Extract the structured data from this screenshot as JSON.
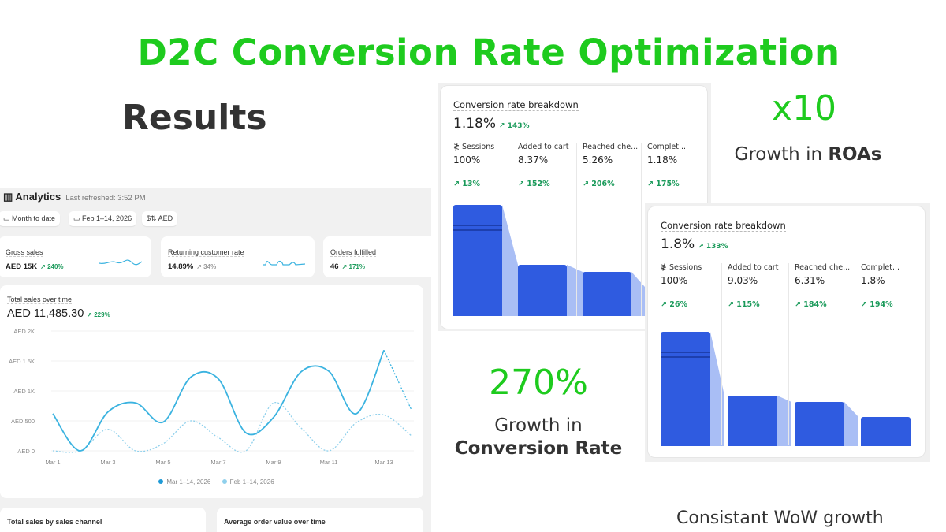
{
  "headline": "D2C Conversion Rate Optimization",
  "results": "Results",
  "stats": {
    "roas_value": "x10",
    "roas_caption_prefix": "Growth in ",
    "roas_caption_bold": "ROAs",
    "cr_value": "270%",
    "cr_caption_line1": "Growth in",
    "cr_caption_bold": "Conversion Rate",
    "footer": "Consistant WoW growth"
  },
  "colors": {
    "accent_green": "#1ecb1e",
    "bar_blue": "#2f5be0",
    "line_blue": "#3bb3e0",
    "up_green": "#1a9a5a"
  },
  "analytics": {
    "title": "Analytics",
    "refreshed": "Last refreshed: 3:52 PM",
    "chips": [
      "Month to date",
      "Feb 1–14, 2026",
      "AED"
    ],
    "kpis": [
      {
        "label": "Gross sales",
        "value": "AED 15K",
        "change": "240%"
      },
      {
        "label": "Returning customer rate",
        "value": "14.89%",
        "change": "34%"
      },
      {
        "label": "Orders fulfilled",
        "value": "46",
        "change": "171%"
      }
    ],
    "bottom_cards": [
      "Total sales by sales channel",
      "Average order value over time"
    ]
  },
  "chart_data": {
    "type": "line",
    "title": "Total sales over time",
    "total": "AED 11,485.30",
    "change": "229%",
    "yticks": [
      "AED 0",
      "AED 500",
      "AED 1K",
      "AED 1.5K",
      "AED 2K"
    ],
    "ylim": [
      0,
      2000
    ],
    "xticks": [
      "Mar 1",
      "Mar 3",
      "Mar 5",
      "Mar 7",
      "Mar 9",
      "Mar 11",
      "Mar 13"
    ],
    "x": [
      1,
      2,
      3,
      4,
      5,
      6,
      7,
      8,
      9,
      10,
      11,
      12,
      13,
      14
    ],
    "series": [
      {
        "name": "Mar 1–14, 2026",
        "values": [
          620,
          0,
          650,
          800,
          480,
          1230,
          1200,
          300,
          560,
          1320,
          1330,
          620,
          1680,
          680
        ],
        "dashed_from": 13
      },
      {
        "name": "Feb 1–14, 2026",
        "values": [
          0,
          0,
          360,
          0,
          120,
          500,
          220,
          0,
          800,
          380,
          0,
          470,
          600,
          250
        ]
      }
    ]
  },
  "funnels": [
    {
      "title": "Conversion rate breakdown",
      "rate": "1.18%",
      "change": "143%",
      "steps": [
        {
          "label": "Sessions",
          "pct": "100%",
          "change": "13%"
        },
        {
          "label": "Added to cart",
          "pct": "8.37%",
          "change": "152%"
        },
        {
          "label": "Reached che...",
          "pct": "5.26%",
          "change": "206%"
        },
        {
          "label": "Complet...",
          "pct": "1.18%",
          "change": "175%"
        }
      ]
    },
    {
      "title": "Conversion rate breakdown",
      "rate": "1.8%",
      "change": "133%",
      "steps": [
        {
          "label": "Sessions",
          "pct": "100%",
          "change": "26%"
        },
        {
          "label": "Added to cart",
          "pct": "9.03%",
          "change": "115%"
        },
        {
          "label": "Reached che...",
          "pct": "6.31%",
          "change": "184%"
        },
        {
          "label": "Complet...",
          "pct": "1.8%",
          "change": "194%"
        }
      ]
    }
  ]
}
